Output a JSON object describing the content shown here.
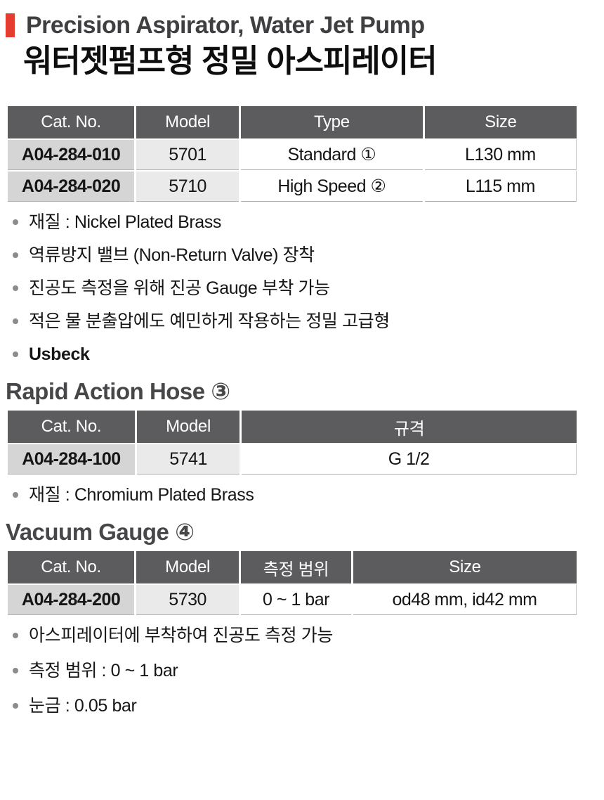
{
  "header": {
    "title_en": "Precision Aspirator, Water Jet Pump",
    "title_ko": "워터젯펌프형 정밀 아스피레이터"
  },
  "colors": {
    "accent_red": "#e43d30",
    "table_header_bg": "#5c5c5e",
    "cat_cell_bg": "#d5d5d5",
    "model_cell_bg": "#eaeaea",
    "heading_gray": "#47474a"
  },
  "aspirator": {
    "table": {
      "headers": [
        "Cat. No.",
        "Model",
        "Type",
        "Size"
      ],
      "rows": [
        [
          "A04-284-010",
          "5701",
          "Standard ①",
          "L130 mm"
        ],
        [
          "A04-284-020",
          "5710",
          "High Speed ②",
          "L115 mm"
        ]
      ]
    },
    "bullets": [
      "재질 : Nickel Plated Brass",
      "역류방지 밸브 (Non-Return Valve) 장착",
      "진공도 측정을 위해 진공 Gauge 부착 가능",
      "적은 물 분출압에도 예민하게 작용하는 정밀 고급형",
      "Usbeck"
    ]
  },
  "hose": {
    "heading": "Rapid Action Hose ③",
    "table": {
      "headers": [
        "Cat. No.",
        "Model",
        "규격"
      ],
      "rows": [
        [
          "A04-284-100",
          "5741",
          "G 1/2"
        ]
      ]
    },
    "bullets": [
      "재질 : Chromium Plated Brass"
    ]
  },
  "gauge": {
    "heading": "Vacuum Gauge ④",
    "table": {
      "headers": [
        "Cat. No.",
        "Model",
        "측정 범위",
        "Size"
      ],
      "rows": [
        [
          "A04-284-200",
          "5730",
          "0 ~ 1 bar",
          "od48 mm, id42 mm"
        ]
      ]
    },
    "bullets": [
      "아스피레이터에 부착하여 진공도 측정 가능",
      "측정 범위 : 0 ~ 1 bar",
      "눈금 : 0.05 bar"
    ]
  }
}
